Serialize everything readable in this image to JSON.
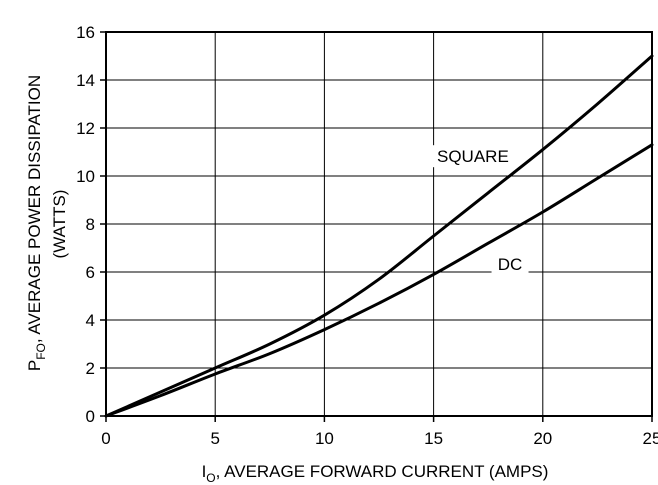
{
  "chart_data": {
    "type": "line",
    "xlabel": {
      "main": "I",
      "sub": "O",
      "rest": ", AVERAGE FORWARD CURRENT (AMPS)"
    },
    "ylabel": {
      "main": "P",
      "sub": "FO",
      "rest": ", AVERAGE POWER DISSIPATION",
      "line2": "(WATTS)"
    },
    "xlim": [
      0,
      25
    ],
    "ylim": [
      0,
      16
    ],
    "xticks": [
      0,
      5,
      10,
      15,
      20,
      25
    ],
    "yticks": [
      0,
      2,
      4,
      6,
      8,
      10,
      12,
      14,
      16
    ],
    "grid": true,
    "series": [
      {
        "name": "SQUARE",
        "x": [
          0,
          2.5,
          5,
          7.5,
          10,
          12.5,
          15,
          17.5,
          20,
          22.5,
          25
        ],
        "y": [
          0,
          1.0,
          2.0,
          3.0,
          4.2,
          5.7,
          7.5,
          9.3,
          11.1,
          13.0,
          15.0
        ]
      },
      {
        "name": "DC",
        "x": [
          0,
          2.5,
          5,
          7.5,
          10,
          12.5,
          15,
          17.5,
          20,
          22.5,
          25
        ],
        "y": [
          0,
          0.85,
          1.75,
          2.6,
          3.6,
          4.7,
          5.9,
          7.2,
          8.5,
          9.9,
          11.3
        ]
      }
    ]
  }
}
